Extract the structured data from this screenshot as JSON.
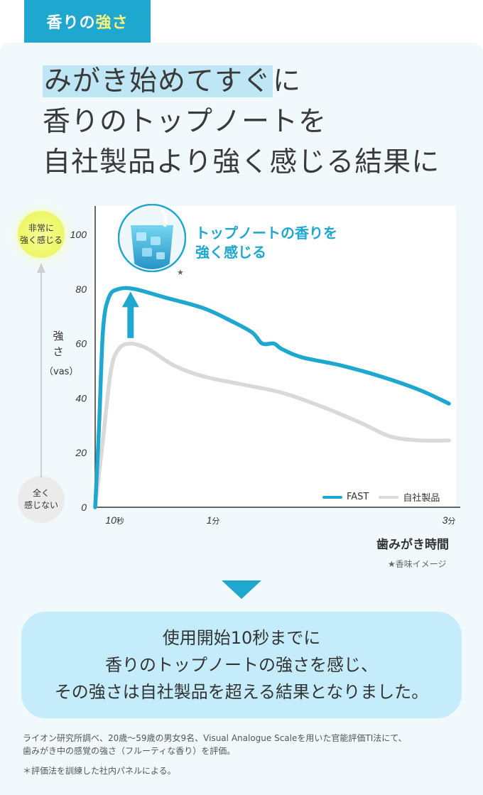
{
  "tag": {
    "prefix": "香りの",
    "highlight": "強さ"
  },
  "headline": {
    "line1_mark": "みがき始めてすぐ",
    "line1_rest": "に",
    "line2": "香りのトップノートを",
    "line3": "自社製品より強く感じる結果に"
  },
  "y_axis": {
    "high_label_1": "非常に",
    "high_label_2": "強く感じる",
    "low_label_1": "全く",
    "low_label_2": "感じない",
    "name_1": "強",
    "name_2": "さ",
    "unit": "（vas）"
  },
  "x_axis": {
    "title": "歯みがき時間"
  },
  "image_note": "★香味イメージ",
  "callout": {
    "line1": "トップノートの香りを",
    "line2": "強く感じる"
  },
  "glass_star": "★",
  "result": {
    "line1": "使用開始10秒までに",
    "line2": "香りのトップノートの強さを感じ、",
    "line3": "その強さは自社製品を超える結果となりました。"
  },
  "footnote": {
    "line1": "ライオン研究所調べ、20歳〜59歳の男女9名、Visual Analogue Scaleを用いた官能評価TI法にて、",
    "line2": "歯みがき中の感覚の強さ（フルーティな香り）を評価。",
    "line3": "＊評価法を訓練した社内パネルによる。"
  },
  "colors": {
    "fast": "#1ea7cf",
    "own": "#d9d9d9",
    "accent": "#1ea7cf"
  },
  "chart_data": {
    "type": "line",
    "ylim": [
      0,
      110
    ],
    "xlim": [
      0,
      180
    ],
    "y_ticks": [
      "0",
      "20",
      "40",
      "60",
      "80",
      "100"
    ],
    "y_tick_values": [
      0,
      20,
      40,
      60,
      80,
      100
    ],
    "x_ticks": [
      {
        "value": 10,
        "num": "10",
        "unit": "秒"
      },
      {
        "value": 60,
        "num": "1",
        "unit": "分"
      },
      {
        "value": 180,
        "num": "3",
        "unit": "分"
      }
    ],
    "legend_position": "bottom-right",
    "series": [
      {
        "name": "FAST",
        "color": "#1ea7cf",
        "points": [
          [
            0,
            0
          ],
          [
            2,
            30
          ],
          [
            4,
            65
          ],
          [
            7,
            77
          ],
          [
            12,
            80
          ],
          [
            20,
            80
          ],
          [
            35,
            77
          ],
          [
            55,
            73
          ],
          [
            70,
            68
          ],
          [
            80,
            64
          ],
          [
            85,
            60
          ],
          [
            91,
            60
          ],
          [
            95,
            58
          ],
          [
            105,
            55
          ],
          [
            125,
            52
          ],
          [
            145,
            48
          ],
          [
            165,
            43
          ],
          [
            180,
            38
          ]
        ]
      },
      {
        "name": "自社製品",
        "color": "#d9d9d9",
        "points": [
          [
            0,
            0
          ],
          [
            4,
            25
          ],
          [
            8,
            50
          ],
          [
            12,
            58
          ],
          [
            18,
            60
          ],
          [
            27,
            58
          ],
          [
            40,
            52
          ],
          [
            55,
            48
          ],
          [
            75,
            45
          ],
          [
            95,
            42
          ],
          [
            115,
            37
          ],
          [
            135,
            31
          ],
          [
            150,
            26
          ],
          [
            165,
            24.5
          ],
          [
            180,
            24.5
          ]
        ]
      }
    ],
    "annotation_arrow": {
      "x": 18,
      "from": 62,
      "to": 77
    }
  }
}
